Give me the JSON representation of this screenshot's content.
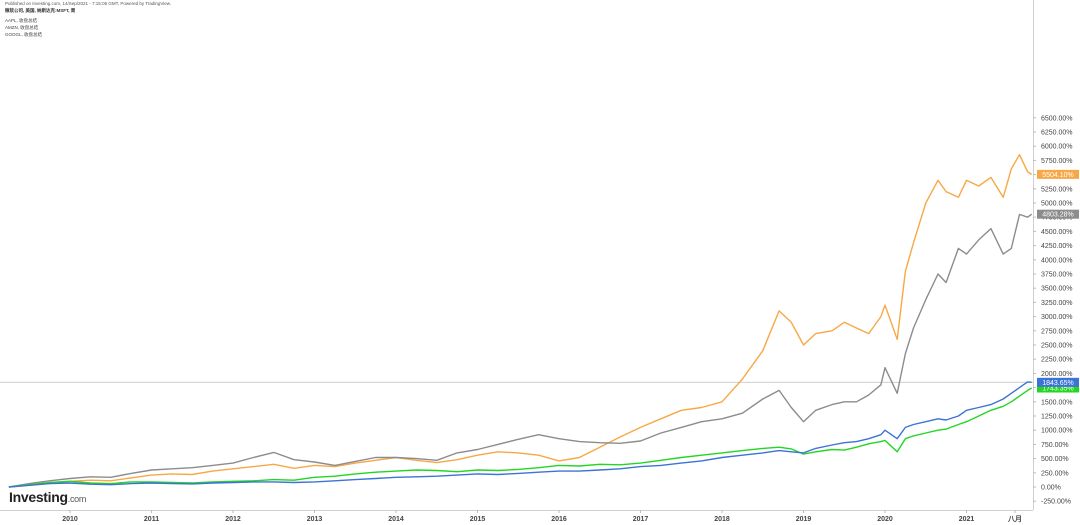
{
  "header": {
    "published": "Published on Investing.com, 14/Sep/2021 - 7:15:05 GMT, Powered by TradingView.",
    "title": "微软公司, 美国, 纳斯达克:MSFT, 周"
  },
  "legend": [
    "AAPL, 收盘总结",
    "AMZN, 收盘总结",
    "GOOGL, 收盘总结"
  ],
  "logo": {
    "main": "Investing",
    "suffix": ".com"
  },
  "chart_data": {
    "type": "line",
    "x_tick_labels": [
      "2010",
      "2011",
      "2012",
      "2013",
      "2014",
      "2015",
      "2016",
      "2017",
      "2018",
      "2019",
      "2020",
      "2021",
      "八月"
    ],
    "y_ticks": [
      -250,
      0,
      250,
      500,
      750,
      1000,
      1250,
      1500,
      1750,
      2000,
      2250,
      2500,
      2750,
      3000,
      3250,
      3500,
      3750,
      4000,
      4250,
      4500,
      4750,
      5000,
      5250,
      5500,
      5750,
      6000,
      6250,
      6500
    ],
    "y_unit": "%",
    "ylim": [
      -300,
      6700
    ],
    "crosshair_y": 1843.65,
    "series": [
      {
        "name": "AAPL",
        "color": "#f7a845",
        "last_label": "5504.10%",
        "x": [
          2009.25,
          2009.5,
          2009.75,
          2010,
          2010.25,
          2010.5,
          2010.75,
          2011,
          2011.25,
          2011.5,
          2011.75,
          2012,
          2012.25,
          2012.5,
          2012.75,
          2013,
          2013.25,
          2013.5,
          2013.75,
          2014,
          2014.25,
          2014.5,
          2014.75,
          2015,
          2015.25,
          2015.5,
          2015.75,
          2016,
          2016.25,
          2016.5,
          2016.75,
          2017,
          2017.25,
          2017.5,
          2017.75,
          2018,
          2018.25,
          2018.5,
          2018.7,
          2018.85,
          2019,
          2019.15,
          2019.35,
          2019.5,
          2019.65,
          2019.8,
          2019.95,
          2020,
          2020.15,
          2020.25,
          2020.35,
          2020.5,
          2020.65,
          2020.75,
          2020.9,
          2021,
          2021.15,
          2021.3,
          2021.45,
          2021.55,
          2021.65,
          2021.75,
          2021.8
        ],
        "y": [
          0,
          30,
          60,
          100,
          120,
          110,
          160,
          210,
          230,
          220,
          280,
          320,
          360,
          400,
          330,
          380,
          360,
          420,
          470,
          520,
          470,
          430,
          480,
          560,
          620,
          600,
          560,
          460,
          520,
          700,
          880,
          1050,
          1200,
          1350,
          1400,
          1500,
          1900,
          2400,
          3100,
          2900,
          2500,
          2700,
          2750,
          2900,
          2800,
          2700,
          3000,
          3200,
          2600,
          3800,
          4300,
          5000,
          5400,
          5200,
          5100,
          5400,
          5300,
          5450,
          5100,
          5600,
          5850,
          5550,
          5504
        ]
      },
      {
        "name": "AMZN",
        "color": "#8c8c8c",
        "last_label": "4803.28%",
        "x": [
          2009.25,
          2009.5,
          2009.75,
          2010,
          2010.25,
          2010.5,
          2010.75,
          2011,
          2011.25,
          2011.5,
          2011.75,
          2012,
          2012.25,
          2012.5,
          2012.75,
          2013,
          2013.25,
          2013.5,
          2013.75,
          2014,
          2014.25,
          2014.5,
          2014.75,
          2015,
          2015.25,
          2015.5,
          2015.75,
          2016,
          2016.25,
          2016.5,
          2016.75,
          2017,
          2017.25,
          2017.5,
          2017.75,
          2018,
          2018.25,
          2018.5,
          2018.7,
          2018.85,
          2019,
          2019.15,
          2019.35,
          2019.5,
          2019.65,
          2019.8,
          2019.95,
          2020,
          2020.15,
          2020.25,
          2020.35,
          2020.5,
          2020.65,
          2020.75,
          2020.9,
          2021,
          2021.15,
          2021.3,
          2021.45,
          2021.55,
          2021.65,
          2021.75,
          2021.8
        ],
        "y": [
          0,
          60,
          110,
          150,
          180,
          170,
          240,
          300,
          320,
          340,
          380,
          420,
          520,
          610,
          480,
          440,
          380,
          450,
          520,
          520,
          500,
          470,
          600,
          660,
          750,
          840,
          920,
          850,
          800,
          780,
          770,
          810,
          950,
          1050,
          1150,
          1200,
          1300,
          1550,
          1700,
          1400,
          1150,
          1350,
          1450,
          1500,
          1500,
          1620,
          1800,
          2100,
          1650,
          2350,
          2800,
          3300,
          3750,
          3600,
          4200,
          4100,
          4350,
          4550,
          4100,
          4200,
          4800,
          4750,
          4803
        ]
      },
      {
        "name": "GOOGL",
        "color": "#22d622",
        "last_label": "1743.35%",
        "x": [
          2009.25,
          2009.5,
          2009.75,
          2010,
          2010.25,
          2010.5,
          2010.75,
          2011,
          2011.25,
          2011.5,
          2011.75,
          2012,
          2012.25,
          2012.5,
          2012.75,
          2013,
          2013.25,
          2013.5,
          2013.75,
          2014,
          2014.25,
          2014.5,
          2014.75,
          2015,
          2015.25,
          2015.5,
          2015.75,
          2016,
          2016.25,
          2016.5,
          2016.75,
          2017,
          2017.25,
          2017.5,
          2017.75,
          2018,
          2018.25,
          2018.5,
          2018.7,
          2018.85,
          2019,
          2019.15,
          2019.35,
          2019.5,
          2019.65,
          2019.8,
          2019.95,
          2020,
          2020.15,
          2020.25,
          2020.35,
          2020.5,
          2020.65,
          2020.75,
          2020.9,
          2021,
          2021.15,
          2021.3,
          2021.45,
          2021.55,
          2021.65,
          2021.75,
          2021.8
        ],
        "y": [
          0,
          40,
          80,
          100,
          70,
          60,
          90,
          90,
          80,
          70,
          90,
          100,
          110,
          130,
          120,
          170,
          190,
          230,
          260,
          280,
          300,
          290,
          270,
          300,
          290,
          310,
          340,
          380,
          370,
          400,
          390,
          420,
          470,
          520,
          560,
          600,
          640,
          680,
          700,
          670,
          580,
          620,
          660,
          650,
          700,
          760,
          800,
          820,
          620,
          850,
          900,
          950,
          1000,
          1020,
          1100,
          1150,
          1250,
          1350,
          1420,
          1500,
          1600,
          1700,
          1743
        ]
      },
      {
        "name": "MSFT",
        "color": "#3b73d6",
        "last_label": "1843.65%",
        "x": [
          2009.25,
          2009.5,
          2009.75,
          2010,
          2010.25,
          2010.5,
          2010.75,
          2011,
          2011.25,
          2011.5,
          2011.75,
          2012,
          2012.25,
          2012.5,
          2012.75,
          2013,
          2013.25,
          2013.5,
          2013.75,
          2014,
          2014.25,
          2014.5,
          2014.75,
          2015,
          2015.25,
          2015.5,
          2015.75,
          2016,
          2016.25,
          2016.5,
          2016.75,
          2017,
          2017.25,
          2017.5,
          2017.75,
          2018,
          2018.25,
          2018.5,
          2018.7,
          2018.85,
          2019,
          2019.15,
          2019.35,
          2019.5,
          2019.65,
          2019.8,
          2019.95,
          2020,
          2020.15,
          2020.25,
          2020.35,
          2020.5,
          2020.65,
          2020.75,
          2020.9,
          2021,
          2021.15,
          2021.3,
          2021.45,
          2021.55,
          2021.65,
          2021.75,
          2021.8
        ],
        "y": [
          0,
          30,
          60,
          70,
          50,
          40,
          60,
          70,
          60,
          55,
          70,
          80,
          90,
          90,
          80,
          90,
          110,
          130,
          150,
          170,
          180,
          190,
          210,
          230,
          220,
          240,
          260,
          280,
          280,
          300,
          320,
          360,
          380,
          420,
          460,
          520,
          560,
          600,
          640,
          620,
          600,
          680,
          740,
          780,
          800,
          850,
          920,
          1000,
          850,
          1050,
          1100,
          1150,
          1200,
          1180,
          1250,
          1350,
          1400,
          1450,
          1550,
          1650,
          1750,
          1850,
          1843
        ]
      }
    ]
  }
}
